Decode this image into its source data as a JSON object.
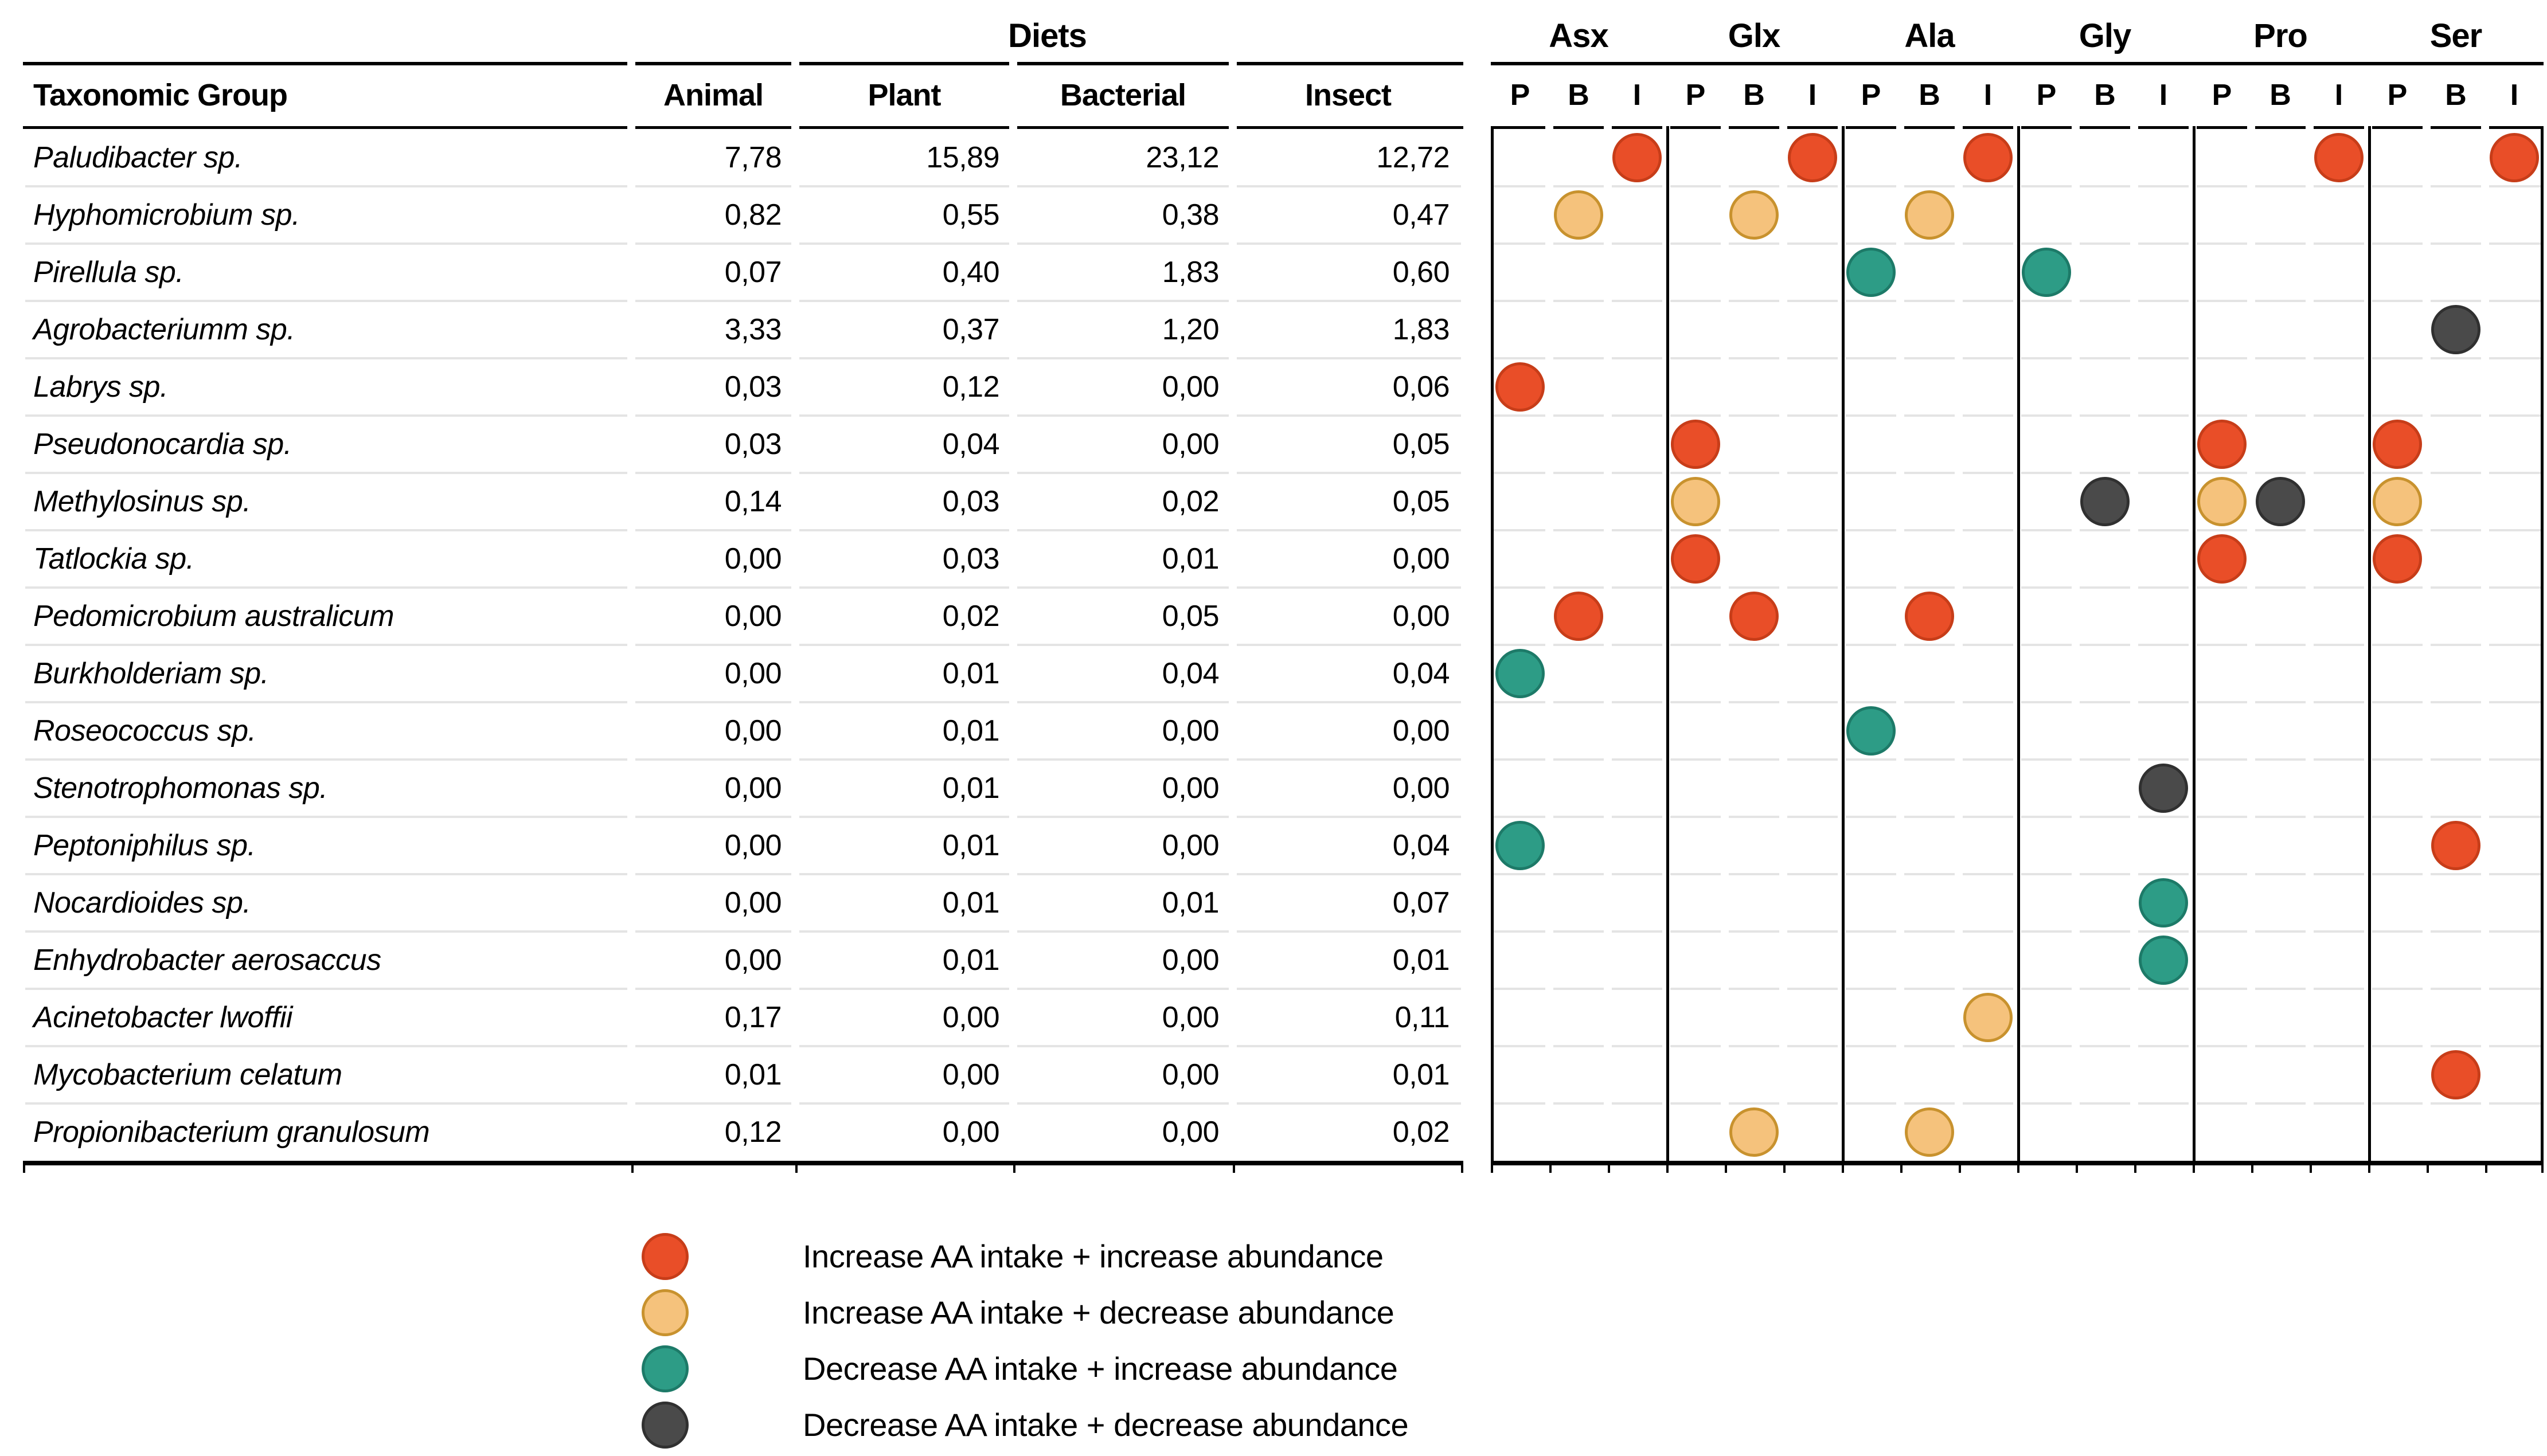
{
  "table": {
    "group_header": "Diets",
    "columns": [
      "Taxonomic Group",
      "Animal",
      "Plant",
      "Bacterial",
      "Insect"
    ],
    "rows": [
      {
        "name": "Paludibacter sp.",
        "values": [
          "7,78",
          "15,89",
          "23,12",
          "12,72"
        ]
      },
      {
        "name": "Hyphomicrobium sp.",
        "values": [
          "0,82",
          "0,55",
          "0,38",
          "0,47"
        ]
      },
      {
        "name": "Pirellula sp.",
        "values": [
          "0,07",
          "0,40",
          "1,83",
          "0,60"
        ]
      },
      {
        "name": "Agrobacteriumm sp.",
        "values": [
          "3,33",
          "0,37",
          "1,20",
          "1,83"
        ]
      },
      {
        "name": "Labrys sp.",
        "values": [
          "0,03",
          "0,12",
          "0,00",
          "0,06"
        ]
      },
      {
        "name": "Pseudonocardia sp.",
        "values": [
          "0,03",
          "0,04",
          "0,00",
          "0,05"
        ]
      },
      {
        "name": "Methylosinus sp.",
        "values": [
          "0,14",
          "0,03",
          "0,02",
          "0,05"
        ]
      },
      {
        "name": "Tatlockia sp.",
        "values": [
          "0,00",
          "0,03",
          "0,01",
          "0,00"
        ]
      },
      {
        "name": "Pedomicrobium australicum",
        "values": [
          "0,00",
          "0,02",
          "0,05",
          "0,00"
        ]
      },
      {
        "name": "Burkholderiam sp.",
        "values": [
          "0,00",
          "0,01",
          "0,04",
          "0,04"
        ]
      },
      {
        "name": "Roseococcus sp.",
        "values": [
          "0,00",
          "0,01",
          "0,00",
          "0,00"
        ]
      },
      {
        "name": "Stenotrophomonas sp.",
        "values": [
          "0,00",
          "0,01",
          "0,00",
          "0,00"
        ]
      },
      {
        "name": "Peptoniphilus sp.",
        "values": [
          "0,00",
          "0,01",
          "0,00",
          "0,04"
        ]
      },
      {
        "name": "Nocardioides sp.",
        "values": [
          "0,00",
          "0,01",
          "0,01",
          "0,07"
        ]
      },
      {
        "name": "Enhydrobacter aerosaccus",
        "values": [
          "0,00",
          "0,01",
          "0,00",
          "0,01"
        ]
      },
      {
        "name": "Acinetobacter lwoffii",
        "values": [
          "0,17",
          "0,00",
          "0,00",
          "0,11"
        ]
      },
      {
        "name": "Mycobacterium celatum",
        "values": [
          "0,01",
          "0,00",
          "0,00",
          "0,01"
        ]
      },
      {
        "name": "Propionibacterium granulosum",
        "values": [
          "0,12",
          "0,00",
          "0,00",
          "0,02"
        ]
      }
    ]
  },
  "matrix": {
    "aa_groups": [
      "Asx",
      "Glx",
      "Ala",
      "Gly",
      "Pro",
      "Ser"
    ],
    "sub_columns": [
      "P",
      "B",
      "I"
    ],
    "dots": [
      {
        "row": 0,
        "aa": "Asx",
        "sub": "I",
        "type": "inc_inc"
      },
      {
        "row": 0,
        "aa": "Glx",
        "sub": "I",
        "type": "inc_inc"
      },
      {
        "row": 0,
        "aa": "Ala",
        "sub": "I",
        "type": "inc_inc"
      },
      {
        "row": 0,
        "aa": "Pro",
        "sub": "I",
        "type": "inc_inc"
      },
      {
        "row": 0,
        "aa": "Ser",
        "sub": "I",
        "type": "inc_inc"
      },
      {
        "row": 1,
        "aa": "Asx",
        "sub": "B",
        "type": "inc_dec"
      },
      {
        "row": 1,
        "aa": "Glx",
        "sub": "B",
        "type": "inc_dec"
      },
      {
        "row": 1,
        "aa": "Ala",
        "sub": "B",
        "type": "inc_dec"
      },
      {
        "row": 2,
        "aa": "Ala",
        "sub": "P",
        "type": "dec_inc"
      },
      {
        "row": 2,
        "aa": "Gly",
        "sub": "P",
        "type": "dec_inc"
      },
      {
        "row": 3,
        "aa": "Ser",
        "sub": "B",
        "type": "dec_dec"
      },
      {
        "row": 4,
        "aa": "Asx",
        "sub": "P",
        "type": "inc_inc"
      },
      {
        "row": 5,
        "aa": "Glx",
        "sub": "P",
        "type": "inc_inc"
      },
      {
        "row": 5,
        "aa": "Pro",
        "sub": "P",
        "type": "inc_inc"
      },
      {
        "row": 5,
        "aa": "Ser",
        "sub": "P",
        "type": "inc_inc"
      },
      {
        "row": 6,
        "aa": "Glx",
        "sub": "P",
        "type": "inc_dec"
      },
      {
        "row": 6,
        "aa": "Gly",
        "sub": "B",
        "type": "dec_dec"
      },
      {
        "row": 6,
        "aa": "Pro",
        "sub": "P",
        "type": "inc_dec"
      },
      {
        "row": 6,
        "aa": "Pro",
        "sub": "B",
        "type": "dec_dec"
      },
      {
        "row": 6,
        "aa": "Ser",
        "sub": "P",
        "type": "inc_dec"
      },
      {
        "row": 7,
        "aa": "Glx",
        "sub": "P",
        "type": "inc_inc"
      },
      {
        "row": 7,
        "aa": "Pro",
        "sub": "P",
        "type": "inc_inc"
      },
      {
        "row": 7,
        "aa": "Ser",
        "sub": "P",
        "type": "inc_inc"
      },
      {
        "row": 8,
        "aa": "Asx",
        "sub": "B",
        "type": "inc_inc"
      },
      {
        "row": 8,
        "aa": "Glx",
        "sub": "B",
        "type": "inc_inc"
      },
      {
        "row": 8,
        "aa": "Ala",
        "sub": "B",
        "type": "inc_inc"
      },
      {
        "row": 9,
        "aa": "Asx",
        "sub": "P",
        "type": "dec_inc"
      },
      {
        "row": 10,
        "aa": "Ala",
        "sub": "P",
        "type": "dec_inc"
      },
      {
        "row": 11,
        "aa": "Gly",
        "sub": "I",
        "type": "dec_dec"
      },
      {
        "row": 12,
        "aa": "Asx",
        "sub": "P",
        "type": "dec_inc"
      },
      {
        "row": 12,
        "aa": "Ser",
        "sub": "B",
        "type": "inc_inc"
      },
      {
        "row": 13,
        "aa": "Gly",
        "sub": "I",
        "type": "dec_inc"
      },
      {
        "row": 14,
        "aa": "Gly",
        "sub": "I",
        "type": "dec_inc"
      },
      {
        "row": 15,
        "aa": "Ala",
        "sub": "I",
        "type": "inc_dec"
      },
      {
        "row": 16,
        "aa": "Ser",
        "sub": "B",
        "type": "inc_inc"
      },
      {
        "row": 17,
        "aa": "Glx",
        "sub": "B",
        "type": "inc_dec"
      },
      {
        "row": 17,
        "aa": "Ala",
        "sub": "B",
        "type": "inc_dec"
      }
    ]
  },
  "legend": [
    {
      "type": "inc_inc",
      "label": "Increase AA intake + increase abundance"
    },
    {
      "type": "inc_dec",
      "label": "Increase AA intake + decrease abundance"
    },
    {
      "type": "dec_inc",
      "label": "Decrease AA intake + increase abundance"
    },
    {
      "type": "dec_dec",
      "label": "Decrease AA intake + decrease abundance"
    }
  ],
  "colors": {
    "inc_inc": "#E94E28",
    "inc_inc_border": "#C73D19",
    "inc_dec": "#F5C27C",
    "inc_dec_border": "#C8922E",
    "dec_inc": "#2D9C86",
    "dec_inc_border": "#1D7A68",
    "dec_dec": "#4A4A4A",
    "dec_dec_border": "#303030"
  },
  "chart_data": {
    "type": "table",
    "title": "Diets",
    "columns": [
      "Taxonomic Group",
      "Animal",
      "Plant",
      "Bacterial",
      "Insect"
    ],
    "rows": [
      [
        "Paludibacter sp.",
        "7,78",
        "15,89",
        "23,12",
        "12,72"
      ],
      [
        "Hyphomicrobium sp.",
        "0,82",
        "0,55",
        "0,38",
        "0,47"
      ],
      [
        "Pirellula sp.",
        "0,07",
        "0,40",
        "1,83",
        "0,60"
      ],
      [
        "Agrobacteriumm sp.",
        "3,33",
        "0,37",
        "1,20",
        "1,83"
      ],
      [
        "Labrys sp.",
        "0,03",
        "0,12",
        "0,00",
        "0,06"
      ],
      [
        "Pseudonocardia sp.",
        "0,03",
        "0,04",
        "0,00",
        "0,05"
      ],
      [
        "Methylosinus sp.",
        "0,14",
        "0,03",
        "0,02",
        "0,05"
      ],
      [
        "Tatlockia sp.",
        "0,00",
        "0,03",
        "0,01",
        "0,00"
      ],
      [
        "Pedomicrobium australicum",
        "0,00",
        "0,02",
        "0,05",
        "0,00"
      ],
      [
        "Burkholderiam sp.",
        "0,00",
        "0,01",
        "0,04",
        "0,04"
      ],
      [
        "Roseococcus sp.",
        "0,00",
        "0,01",
        "0,00",
        "0,00"
      ],
      [
        "Stenotrophomonas sp.",
        "0,00",
        "0,01",
        "0,00",
        "0,00"
      ],
      [
        "Peptoniphilus sp.",
        "0,00",
        "0,01",
        "0,00",
        "0,04"
      ],
      [
        "Nocardioides sp.",
        "0,00",
        "0,01",
        "0,01",
        "0,07"
      ],
      [
        "Enhydrobacter aerosaccus",
        "0,00",
        "0,01",
        "0,00",
        "0,01"
      ],
      [
        "Acinetobacter lwoffii",
        "0,17",
        "0,00",
        "0,00",
        "0,11"
      ],
      [
        "Mycobacterium celatum",
        "0,01",
        "0,00",
        "0,00",
        "0,01"
      ],
      [
        "Propionibacterium granulosum",
        "0,12",
        "0,00",
        "0,00",
        "0,02"
      ]
    ],
    "dot_matrix": {
      "x_groups": [
        "Asx",
        "Glx",
        "Ala",
        "Gly",
        "Pro",
        "Ser"
      ],
      "x_subcolumns": [
        "P",
        "B",
        "I"
      ],
      "categories": {
        "inc_inc": "Increase AA intake + increase abundance",
        "inc_dec": "Increase AA intake + decrease abundance",
        "dec_inc": "Decrease AA intake + increase abundance",
        "dec_dec": "Decrease AA intake + decrease abundance"
      },
      "points": [
        {
          "taxon": "Paludibacter sp.",
          "aa": "Asx",
          "diet": "I",
          "category": "inc_inc"
        },
        {
          "taxon": "Paludibacter sp.",
          "aa": "Glx",
          "diet": "I",
          "category": "inc_inc"
        },
        {
          "taxon": "Paludibacter sp.",
          "aa": "Ala",
          "diet": "I",
          "category": "inc_inc"
        },
        {
          "taxon": "Paludibacter sp.",
          "aa": "Pro",
          "diet": "I",
          "category": "inc_inc"
        },
        {
          "taxon": "Paludibacter sp.",
          "aa": "Ser",
          "diet": "I",
          "category": "inc_inc"
        },
        {
          "taxon": "Hyphomicrobium sp.",
          "aa": "Asx",
          "diet": "B",
          "category": "inc_dec"
        },
        {
          "taxon": "Hyphomicrobium sp.",
          "aa": "Glx",
          "diet": "B",
          "category": "inc_dec"
        },
        {
          "taxon": "Hyphomicrobium sp.",
          "aa": "Ala",
          "diet": "B",
          "category": "inc_dec"
        },
        {
          "taxon": "Pirellula sp.",
          "aa": "Ala",
          "diet": "P",
          "category": "dec_inc"
        },
        {
          "taxon": "Pirellula sp.",
          "aa": "Gly",
          "diet": "P",
          "category": "dec_inc"
        },
        {
          "taxon": "Agrobacteriumm sp.",
          "aa": "Ser",
          "diet": "B",
          "category": "dec_dec"
        },
        {
          "taxon": "Labrys sp.",
          "aa": "Asx",
          "diet": "P",
          "category": "inc_inc"
        },
        {
          "taxon": "Pseudonocardia sp.",
          "aa": "Glx",
          "diet": "P",
          "category": "inc_inc"
        },
        {
          "taxon": "Pseudonocardia sp.",
          "aa": "Pro",
          "diet": "P",
          "category": "inc_inc"
        },
        {
          "taxon": "Pseudonocardia sp.",
          "aa": "Ser",
          "diet": "P",
          "category": "inc_inc"
        },
        {
          "taxon": "Methylosinus sp.",
          "aa": "Glx",
          "diet": "P",
          "category": "inc_dec"
        },
        {
          "taxon": "Methylosinus sp.",
          "aa": "Gly",
          "diet": "B",
          "category": "dec_dec"
        },
        {
          "taxon": "Methylosinus sp.",
          "aa": "Pro",
          "diet": "P",
          "category": "inc_dec"
        },
        {
          "taxon": "Methylosinus sp.",
          "aa": "Pro",
          "diet": "B",
          "category": "dec_dec"
        },
        {
          "taxon": "Methylosinus sp.",
          "aa": "Ser",
          "diet": "P",
          "category": "inc_dec"
        },
        {
          "taxon": "Tatlockia sp.",
          "aa": "Glx",
          "diet": "P",
          "category": "inc_inc"
        },
        {
          "taxon": "Tatlockia sp.",
          "aa": "Pro",
          "diet": "P",
          "category": "inc_inc"
        },
        {
          "taxon": "Tatlockia sp.",
          "aa": "Ser",
          "diet": "P",
          "category": "inc_inc"
        },
        {
          "taxon": "Pedomicrobium australicum",
          "aa": "Asx",
          "diet": "B",
          "category": "inc_inc"
        },
        {
          "taxon": "Pedomicrobium australicum",
          "aa": "Glx",
          "diet": "B",
          "category": "inc_inc"
        },
        {
          "taxon": "Pedomicrobium australicum",
          "aa": "Ala",
          "diet": "B",
          "category": "inc_inc"
        },
        {
          "taxon": "Burkholderiam sp.",
          "aa": "Asx",
          "diet": "P",
          "category": "dec_inc"
        },
        {
          "taxon": "Roseococcus sp.",
          "aa": "Ala",
          "diet": "P",
          "category": "dec_inc"
        },
        {
          "taxon": "Stenotrophomonas sp.",
          "aa": "Gly",
          "diet": "I",
          "category": "dec_dec"
        },
        {
          "taxon": "Peptoniphilus sp.",
          "aa": "Asx",
          "diet": "P",
          "category": "dec_inc"
        },
        {
          "taxon": "Peptoniphilus sp.",
          "aa": "Ser",
          "diet": "B",
          "category": "inc_inc"
        },
        {
          "taxon": "Nocardioides sp.",
          "aa": "Gly",
          "diet": "I",
          "category": "dec_inc"
        },
        {
          "taxon": "Enhydrobacter aerosaccus",
          "aa": "Gly",
          "diet": "I",
          "category": "dec_inc"
        },
        {
          "taxon": "Acinetobacter lwoffii",
          "aa": "Ala",
          "diet": "I",
          "category": "inc_dec"
        },
        {
          "taxon": "Mycobacterium celatum",
          "aa": "Ser",
          "diet": "B",
          "category": "inc_inc"
        },
        {
          "taxon": "Propionibacterium granulosum",
          "aa": "Glx",
          "diet": "B",
          "category": "inc_dec"
        },
        {
          "taxon": "Propionibacterium granulosum",
          "aa": "Ala",
          "diet": "B",
          "category": "inc_dec"
        }
      ]
    }
  }
}
